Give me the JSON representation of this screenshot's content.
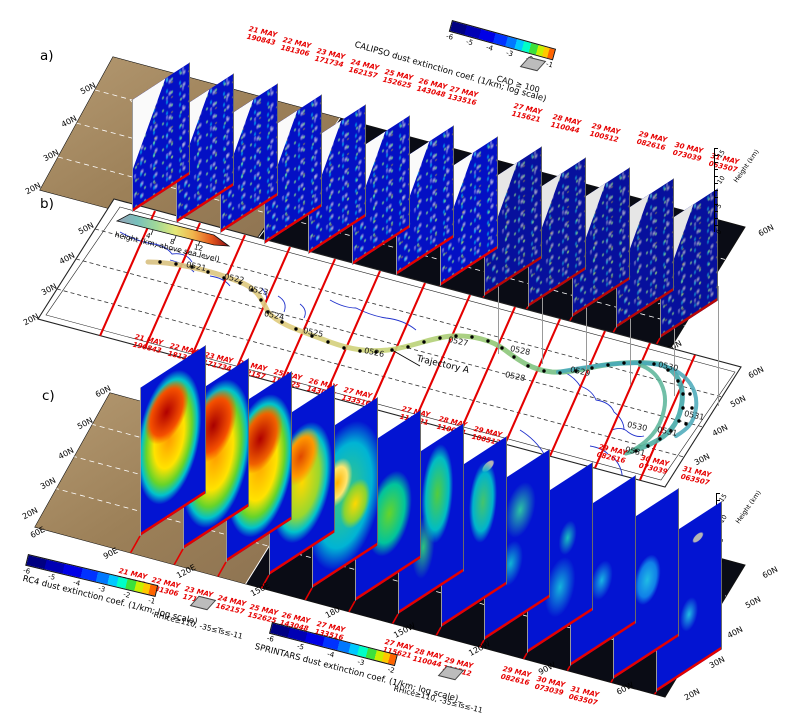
{
  "panels": {
    "a": {
      "label": "a)"
    },
    "b": {
      "label": "b)"
    },
    "c": {
      "label": "c)"
    }
  },
  "colorbars": {
    "calipso": {
      "title": "CALIPSO dust extinction coef. (1/km; log scale)",
      "ticks": [
        "-6",
        "-5",
        "-4",
        "-3",
        "-2",
        "-1"
      ],
      "flag": "CAD ≥ 100"
    },
    "height": {
      "title": "height (km; above sea level)",
      "ticks": [
        "4",
        "8",
        "12"
      ]
    },
    "rc4": {
      "title": "RC4 dust extinction coef. (1/km; log scale)",
      "ticks": [
        "-6",
        "-5",
        "-4",
        "-3",
        "-2",
        "-1"
      ],
      "flag": "RHice≥110, -35≤Ts≤-11"
    },
    "sprintars": {
      "title": "SPRINTARS dust extinction coef. (1/km; log scale)",
      "ticks": [
        "-6",
        "-5",
        "-4",
        "-3",
        "-2"
      ],
      "flag": "RHice≥110, -35≤Ts≤-11"
    }
  },
  "overpasses": [
    {
      "date": "21 MAY",
      "time": "190843"
    },
    {
      "date": "22 MAY",
      "time": "181306"
    },
    {
      "date": "23 MAY",
      "time": "171734"
    },
    {
      "date": "24 MAY",
      "time": "162157"
    },
    {
      "date": "25 MAY",
      "time": "152625"
    },
    {
      "date": "26 MAY",
      "time": "143048"
    },
    {
      "date": "27 MAY",
      "time": "133516"
    },
    {
      "date": "27 MAY",
      "time": "115621"
    },
    {
      "date": "28 MAY",
      "time": "110044"
    },
    {
      "date": "29 MAY",
      "time": "100512"
    },
    {
      "date": "29 MAY",
      "time": "082616"
    },
    {
      "date": "30 MAY",
      "time": "073039"
    },
    {
      "date": "31 MAY",
      "time": "063507"
    }
  ],
  "trajectory": {
    "name": "Trajectory A",
    "waypoint_labels": [
      "0521",
      "0522",
      "0523",
      "0524",
      "0525",
      "0526",
      "0527",
      "0528",
      "0528",
      "0529",
      "0530",
      "0530",
      "0531",
      "0531",
      "0531"
    ]
  },
  "axes": {
    "a_left": [
      "50N",
      "40N",
      "30N",
      "20N"
    ],
    "a_right": [
      "60N",
      "20N"
    ],
    "b_left": [
      "50N",
      "40N",
      "30N",
      "20N"
    ],
    "b_right": [
      "60N",
      "50N",
      "40N",
      "30N"
    ],
    "c_left": [
      "60N",
      "50N",
      "40N",
      "30N",
      "20N"
    ],
    "c_right": [
      "60N",
      "50N",
      "40N",
      "30N",
      "20N"
    ],
    "lons": [
      "60E",
      "90E",
      "120E",
      "150E",
      "180",
      "150W",
      "120W",
      "90W",
      "60W"
    ],
    "height_ticks": [
      "15",
      "10",
      "5",
      "0"
    ],
    "height_title": "Height (km)"
  },
  "chart_data": {
    "type": "curtain-map-composite",
    "description": "Three stacked 3D-perspective panels: (a) CALIPSO lidar dust extinction curtains above an Asia-Pacific-North America map, (b) plan-view map with air-parcel trajectory colored by height with daily waypoints, (c) RC4 and SPRINTARS model dust extinction curtains.",
    "extinction_log10_scale": {
      "min": -6,
      "max": -1,
      "units": "1/km"
    },
    "height_colorbar_km": {
      "min": 0,
      "max": 12,
      "labeled_ticks": [
        4,
        8,
        12
      ]
    },
    "curtain_height_axis_km": [
      0,
      5,
      10,
      15
    ],
    "map_domain": {
      "lat": [
        "20N",
        "60N"
      ],
      "lon": [
        "60E",
        "60W"
      ],
      "lon_ticks": [
        "60E",
        "90E",
        "120E",
        "150E",
        "180",
        "150W",
        "120W",
        "90W",
        "60W"
      ]
    },
    "overpass_times_utc": [
      "21 MAY 190843",
      "22 MAY 181306",
      "23 MAY 171734",
      "24 MAY 162157",
      "25 MAY 152625",
      "26 MAY 143048",
      "27 MAY 133516",
      "27 MAY 115621",
      "28 MAY 110044",
      "29 MAY 100512",
      "29 MAY 082616",
      "30 MAY 073039",
      "31 MAY 063507"
    ],
    "trajectory_waypoint_days": [
      "0521",
      "0522",
      "0523",
      "0524",
      "0525",
      "0526",
      "0527",
      "0528",
      "0529",
      "0530",
      "0531"
    ],
    "rc4_curtain_relative_intensity": [
      "very strong",
      "very strong",
      "very strong",
      "strong",
      "moderate",
      "moderate",
      "weak-moderate",
      "weak",
      "weak",
      "very weak",
      "very weak",
      "very weak",
      "very weak"
    ]
  }
}
